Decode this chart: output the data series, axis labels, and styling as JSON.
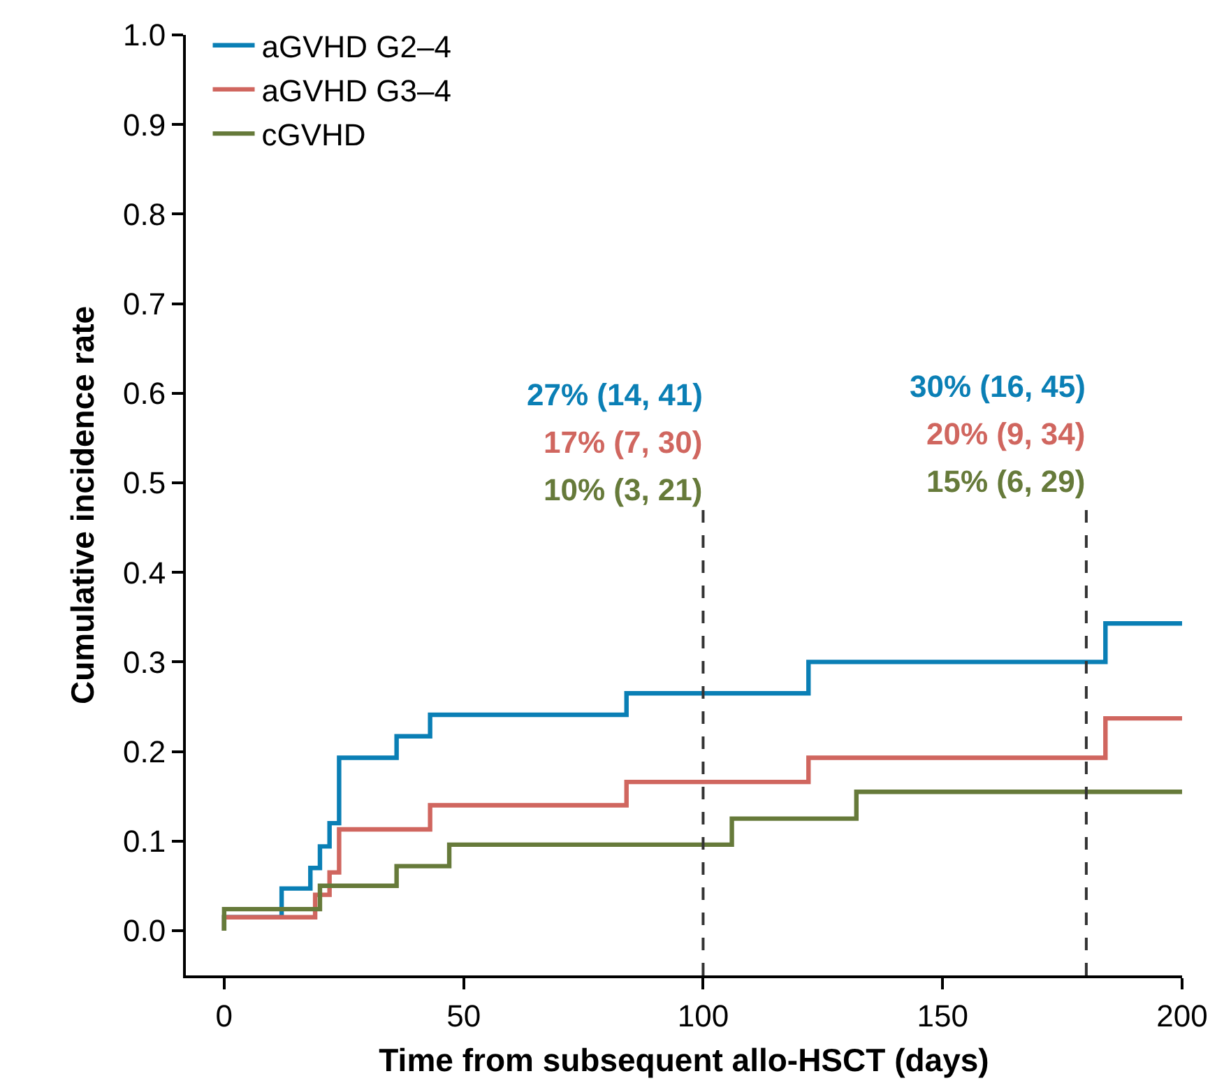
{
  "chart_data": {
    "type": "step",
    "xlabel": "Time from subsequent allo-HSCT (days)",
    "ylabel": "Cumulative incidence rate",
    "xlim": [
      -8,
      200
    ],
    "xticks": [
      0,
      50,
      100,
      150,
      200
    ],
    "ylim": [
      -0.05,
      1.0
    ],
    "yticks": [
      {
        "value": 0,
        "label": "0.0"
      },
      0.1,
      0.2,
      0.3,
      0.4,
      0.5,
      0.6,
      0.7,
      0.8,
      0.9,
      {
        "value": 1,
        "label": "1.0"
      }
    ],
    "grid": false,
    "legend": "top left",
    "line_style": "solid",
    "marker": "none",
    "series": [
      {
        "name": "aGVHD G2–4",
        "color": "#0a7fb5",
        "x": [
          0,
          0,
          12,
          18,
          20,
          22,
          24,
          36,
          43,
          84,
          122,
          184,
          200
        ],
        "values": [
          0,
          0.015,
          0.047,
          0.07,
          0.094,
          0.12,
          0.193,
          0.217,
          0.241,
          0.265,
          0.3,
          0.343,
          0.343
        ]
      },
      {
        "name": "aGVHD G3–4",
        "color": "#d0665f",
        "x": [
          0,
          0,
          19,
          22,
          24,
          43,
          84,
          122,
          184,
          200
        ],
        "values": [
          0,
          0.015,
          0.04,
          0.065,
          0.113,
          0.14,
          0.166,
          0.193,
          0.237,
          0.237
        ]
      },
      {
        "name": "cGVHD",
        "color": "#667a3a",
        "x": [
          0,
          0,
          20,
          36,
          47,
          106,
          132,
          200
        ],
        "values": [
          0,
          0.024,
          0.05,
          0.072,
          0.096,
          0.125,
          0.155,
          0.155
        ]
      }
    ],
    "ref_lines": [
      {
        "axis": "x",
        "value": 100,
        "line_style": "dashed",
        "color": "#333333"
      },
      {
        "axis": "x",
        "value": 180,
        "line_style": "dashed",
        "color": "#333333"
      }
    ],
    "annotations": [
      "27% (14, 41)",
      "17% (7, 30)",
      "10% (3, 21)",
      "30% (16, 45)",
      "20% (9, 34)",
      "15% (6, 29)"
    ]
  }
}
